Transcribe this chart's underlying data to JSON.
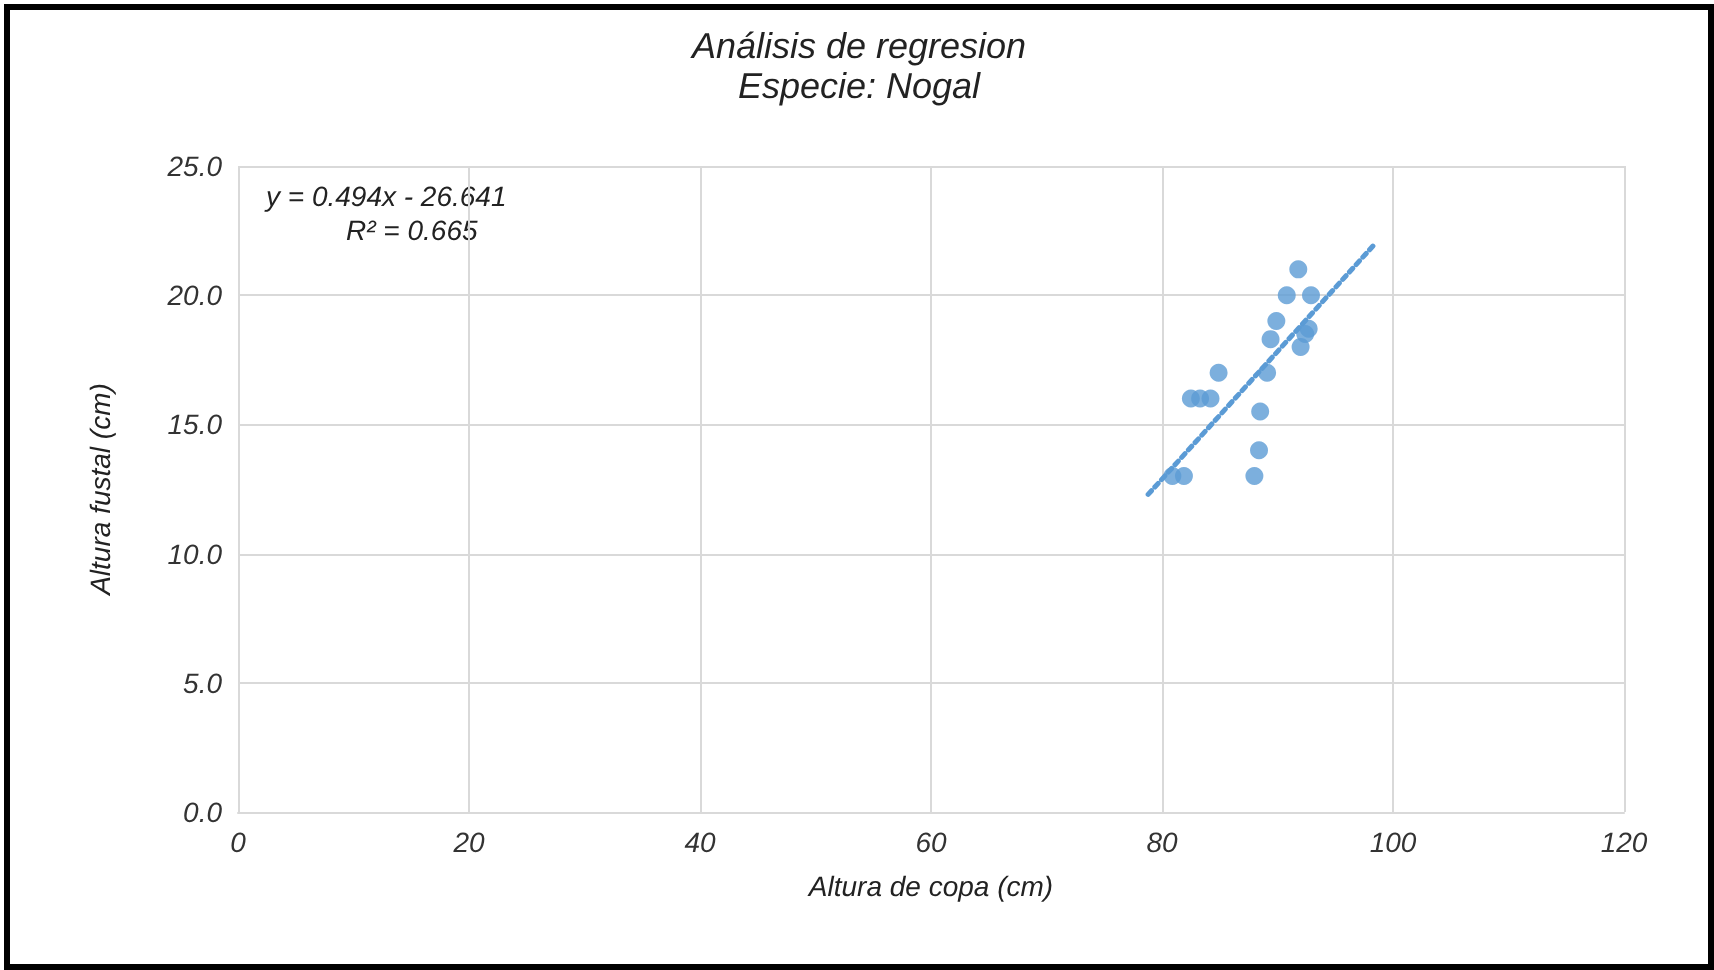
{
  "chart_data": {
    "type": "scatter",
    "title": "Análisis de regresion",
    "subtitle": "Especie: Nogal",
    "xlabel": "Altura de copa (cm)",
    "ylabel": "Altura fustal (cm)",
    "annotations": [
      "y = 0.494x - 26.641",
      "R² = 0.665"
    ],
    "series": [
      {
        "color": "#5b9bd5",
        "marker": "circle",
        "x": [
          91.8,
          90.8,
          92.9,
          89.9,
          92.7,
          92.4,
          89.4,
          92.0,
          84.9,
          89.1,
          82.5,
          83.3,
          84.2,
          88.5,
          88.4,
          88.0,
          80.9,
          81.9
        ],
        "values": [
          21,
          20,
          20,
          19,
          18.7,
          18.5,
          18.3,
          18,
          17,
          17,
          16,
          16,
          16,
          15.5,
          14,
          13,
          13,
          13
        ]
      },
      {
        "type": "line",
        "color": "#5b9bd5",
        "marker": "none",
        "line_style": "dotted",
        "x": [
          78.8,
          98.4
        ],
        "values": [
          12.29,
          21.97
        ]
      }
    ],
    "xlim": [
      0,
      120
    ],
    "xticks": [
      0,
      20,
      40,
      60,
      80,
      100,
      120
    ],
    "ylim": [
      0,
      25
    ],
    "yticks": [
      {
        "value": 0,
        "label": "0.0"
      },
      {
        "value": 5,
        "label": "5.0"
      },
      {
        "value": 10,
        "label": "10.0"
      },
      {
        "value": 15,
        "label": "15.0"
      },
      {
        "value": 20,
        "label": "20.0"
      },
      {
        "value": 25,
        "label": "25.0"
      }
    ],
    "grid": true
  }
}
